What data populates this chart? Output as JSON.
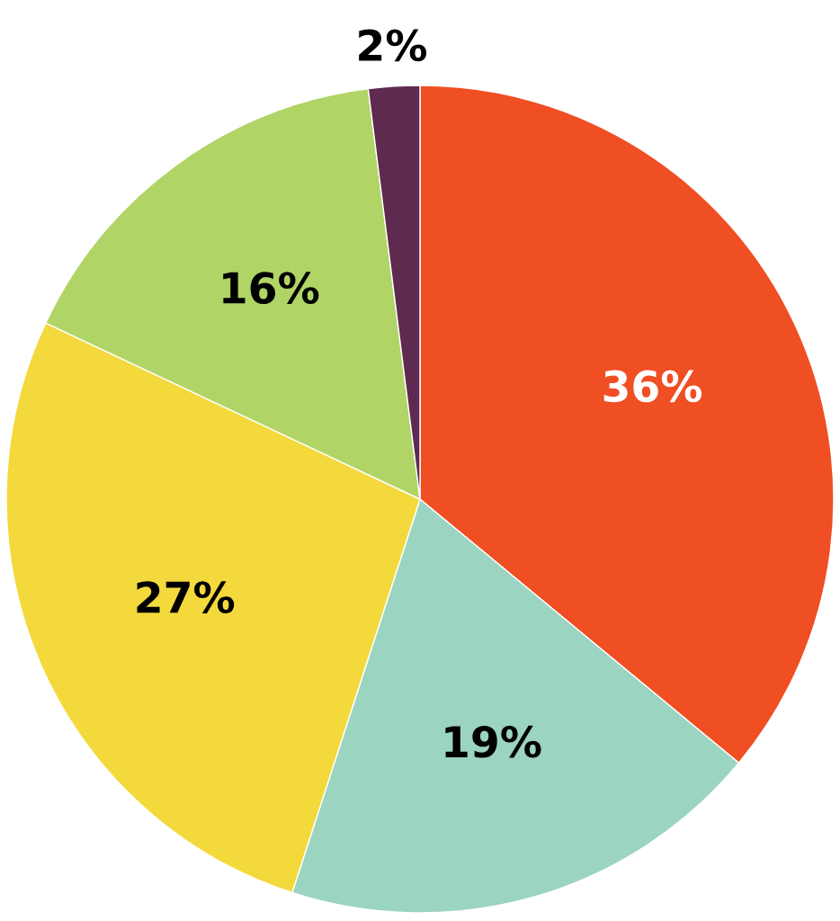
{
  "chart_data": {
    "type": "pie",
    "categories": [
      null,
      null,
      null,
      null,
      null
    ],
    "values": [
      36,
      19,
      27,
      16,
      2
    ],
    "colors": [
      "#f04e23",
      "#9bd4c0",
      "#f3d93c",
      "#b1d466",
      "#5e2a4f"
    ],
    "value_labels": [
      "36%",
      "19%",
      "27%",
      "16%",
      "2%"
    ]
  }
}
